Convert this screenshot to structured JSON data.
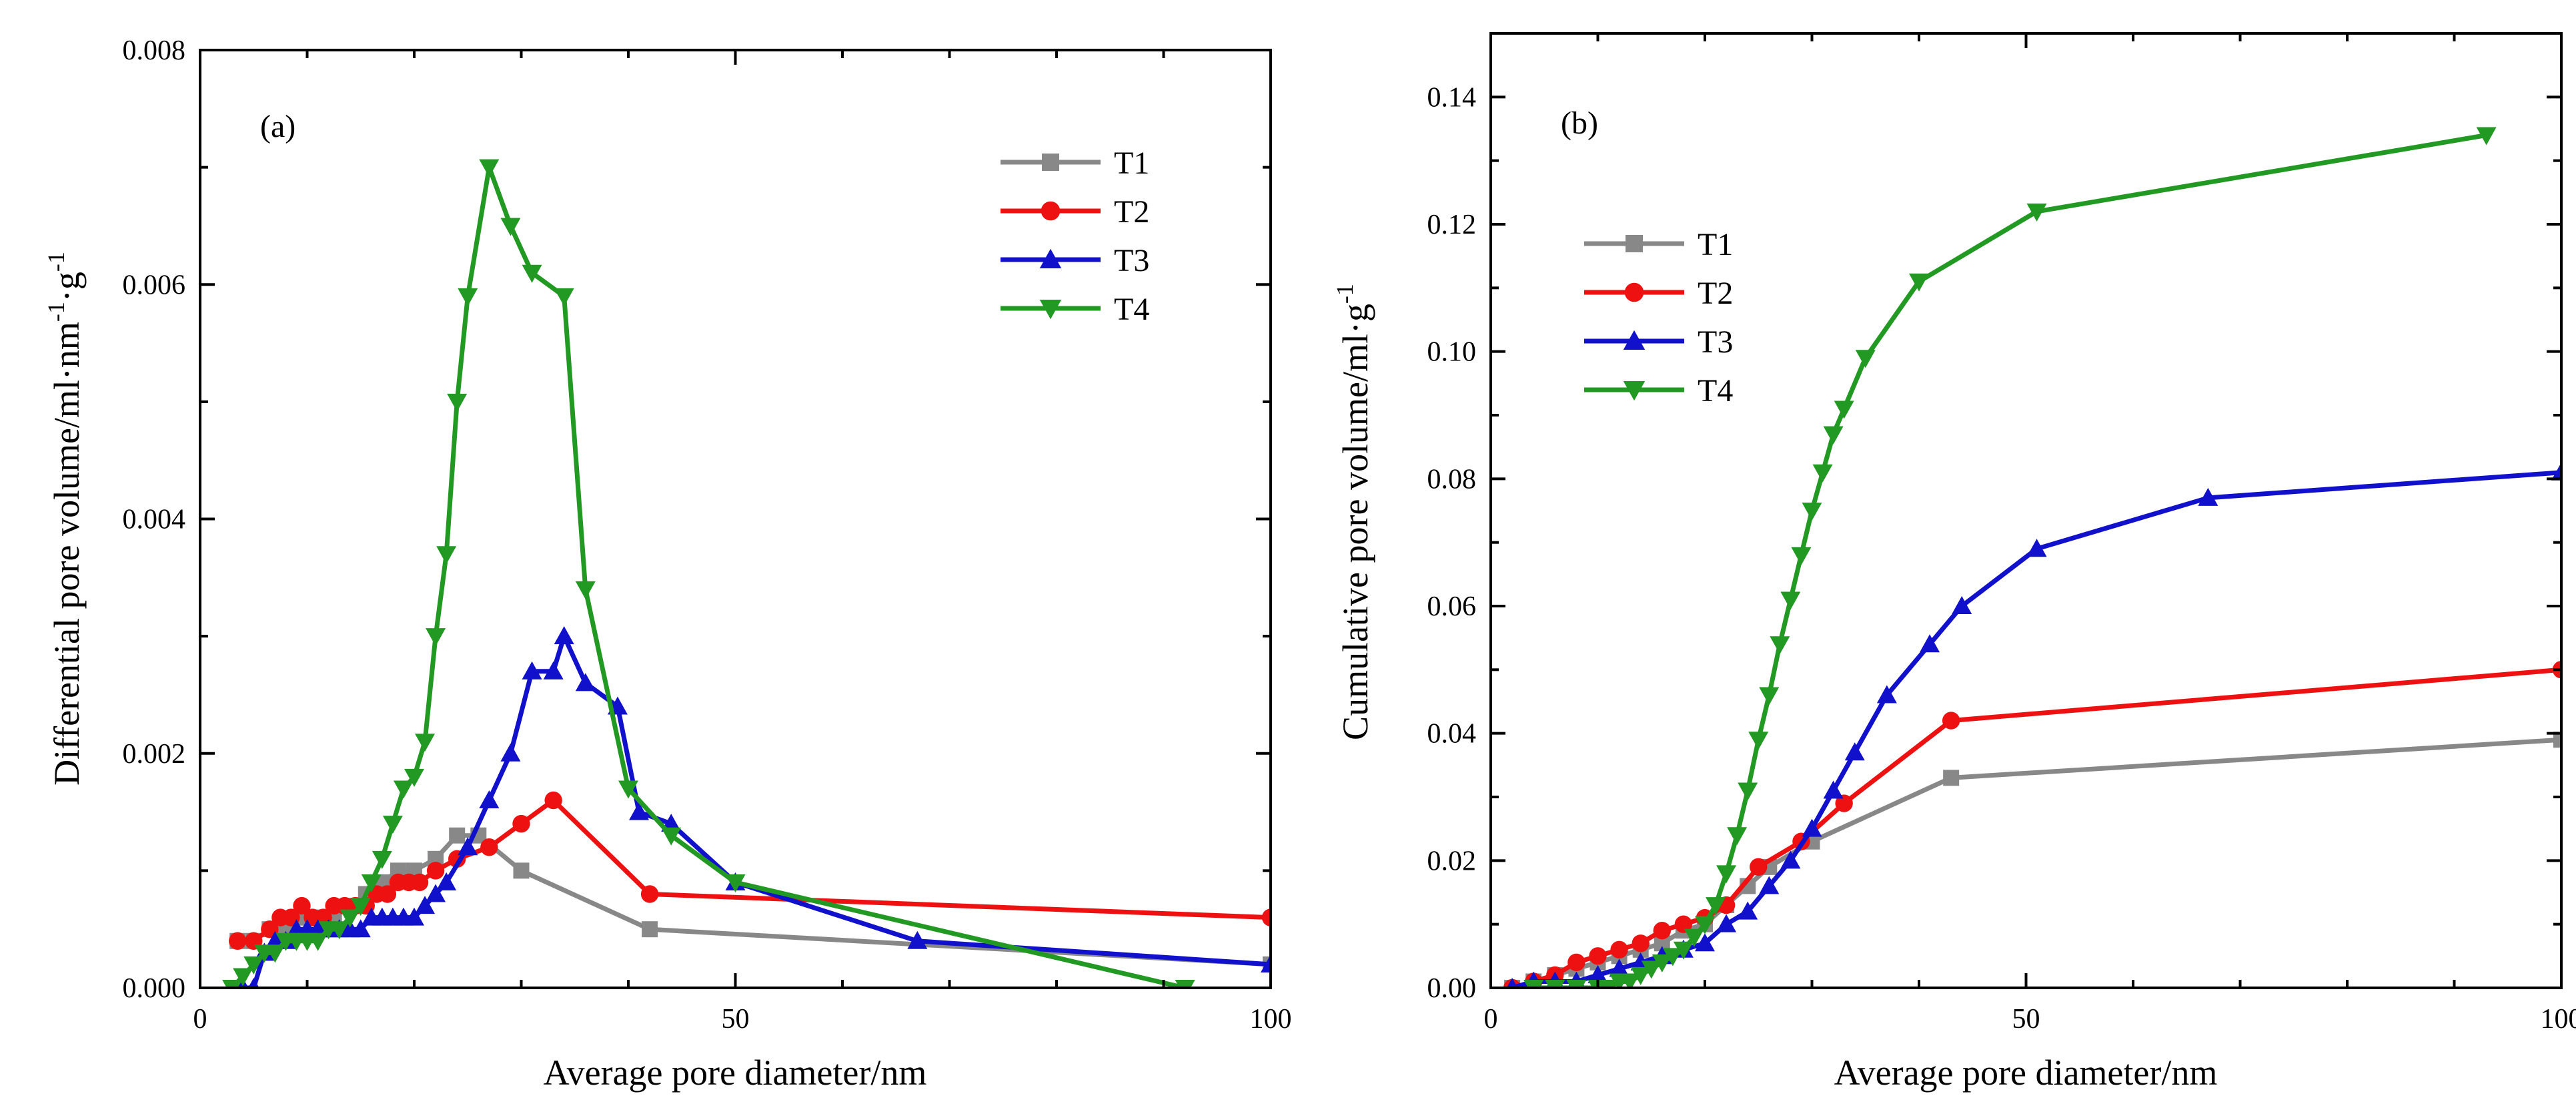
{
  "figure": {
    "description_free": true
  },
  "colors": {
    "T1": "#888888",
    "T2": "#ee1111",
    "T3": "#1111cc",
    "T4": "#229922"
  },
  "chart_data": [
    {
      "type": "line",
      "panel_label": "(a)",
      "title": "",
      "xlabel": "Average pore diameter/nm",
      "ylabel": "Differential pore volume/ml·nm",
      "ylabel_sup1": "-1",
      "ylabel_mid": "·g",
      "ylabel_sup2": "-1",
      "xlim": [
        0,
        100
      ],
      "ylim": [
        0,
        0.008
      ],
      "xticks": [
        0,
        50,
        100
      ],
      "yticks": [
        0,
        0.002,
        0.004,
        0.006,
        0.008
      ],
      "xtick_labels": [
        "0",
        "50",
        "100"
      ],
      "ytick_labels": [
        "0.000",
        "0.002",
        "0.004",
        "0.006",
        "0.008"
      ],
      "x_minor_step": 10,
      "y_minor_step": 0.001,
      "legend": [
        "T1",
        "T2",
        "T3",
        "T4"
      ],
      "legend_position": "top-right",
      "series": [
        {
          "name": "T1",
          "marker": "square",
          "x": [
            3.5,
            5,
            6.5,
            8,
            9.5,
            11,
            12.5,
            14,
            15.5,
            17,
            18.5,
            20,
            22,
            24,
            26,
            30,
            42,
            100
          ],
          "y": [
            0.0004,
            0.0004,
            0.0005,
            0.0005,
            0.0006,
            0.0006,
            0.0006,
            0.0007,
            0.0008,
            0.0009,
            0.001,
            0.001,
            0.0011,
            0.0013,
            0.0013,
            0.001,
            0.0005,
            0.0002
          ]
        },
        {
          "name": "T2",
          "marker": "circle",
          "x": [
            3.5,
            5,
            6.5,
            7.5,
            8.5,
            9.5,
            10.5,
            11.5,
            12.5,
            13.5,
            14.5,
            15.5,
            16.5,
            17.5,
            18.5,
            19.5,
            20.5,
            22,
            24,
            27,
            30,
            33,
            42,
            100
          ],
          "y": [
            0.0004,
            0.0004,
            0.0005,
            0.0006,
            0.0006,
            0.0007,
            0.0006,
            0.0006,
            0.0007,
            0.0007,
            0.0007,
            0.0007,
            0.0008,
            0.0008,
            0.0009,
            0.0009,
            0.0009,
            0.001,
            0.0011,
            0.0012,
            0.0014,
            0.0016,
            0.0008,
            0.0006
          ]
        },
        {
          "name": "T3",
          "marker": "triangle-up",
          "x": [
            4,
            5,
            6,
            7,
            8,
            9,
            10,
            11,
            12,
            13,
            14,
            15,
            16,
            17,
            18,
            19,
            20,
            21,
            22,
            23,
            25,
            27,
            29,
            31,
            33,
            34,
            36,
            39,
            41,
            44,
            50,
            67,
            100
          ],
          "y": [
            0.0,
            0.0,
            0.0003,
            0.0004,
            0.0004,
            0.0005,
            0.0005,
            0.0005,
            0.0005,
            0.0005,
            0.0005,
            0.0005,
            0.0006,
            0.0006,
            0.0006,
            0.0006,
            0.0006,
            0.0007,
            0.0008,
            0.0009,
            0.0012,
            0.0016,
            0.002,
            0.0027,
            0.0027,
            0.003,
            0.0026,
            0.0024,
            0.0015,
            0.0014,
            0.0009,
            0.0004,
            0.0002
          ]
        },
        {
          "name": "T4",
          "marker": "triangle-down",
          "x": [
            3,
            4,
            5,
            6,
            7,
            8,
            9,
            10,
            11,
            12,
            13,
            14,
            15,
            16,
            17,
            18,
            19,
            20,
            21,
            22,
            23,
            24,
            25,
            27,
            29,
            31,
            34,
            36,
            40,
            44,
            50,
            92
          ],
          "y": [
            0.0,
            0.0001,
            0.0002,
            0.0003,
            0.0003,
            0.0004,
            0.0004,
            0.0004,
            0.0004,
            0.0005,
            0.0005,
            0.0006,
            0.0007,
            0.0009,
            0.0011,
            0.0014,
            0.0017,
            0.0018,
            0.0021,
            0.003,
            0.0037,
            0.005,
            0.0059,
            0.007,
            0.0065,
            0.0061,
            0.0059,
            0.0034,
            0.0017,
            0.0013,
            0.0009,
            0.0
          ]
        }
      ]
    },
    {
      "type": "line",
      "panel_label": "(b)",
      "title": "",
      "xlabel": "Average pore diameter/nm",
      "ylabel": "Cumulative pore volume/ml·g",
      "ylabel_sup1": "-1",
      "xlim": [
        0,
        100
      ],
      "ylim": [
        0,
        0.15
      ],
      "xticks": [
        0,
        50,
        100
      ],
      "yticks": [
        0,
        0.02,
        0.04,
        0.06,
        0.08,
        0.1,
        0.12,
        0.14
      ],
      "xtick_labels": [
        "0",
        "50",
        "100"
      ],
      "ytick_labels": [
        "0.00",
        "0.02",
        "0.04",
        "0.06",
        "0.08",
        "0.10",
        "0.12",
        "0.14"
      ],
      "x_minor_step": 10,
      "y_minor_step": 0.01,
      "legend": [
        "T1",
        "T2",
        "T3",
        "T4"
      ],
      "legend_position": "top-left",
      "series": [
        {
          "name": "T1",
          "marker": "square",
          "x": [
            2,
            4,
            6,
            8,
            10,
            12,
            14,
            16,
            18,
            20,
            22,
            24,
            26,
            30,
            43,
            100
          ],
          "y": [
            0.0,
            0.001,
            0.002,
            0.003,
            0.004,
            0.005,
            0.006,
            0.007,
            0.009,
            0.01,
            0.013,
            0.016,
            0.019,
            0.023,
            0.033,
            0.039
          ]
        },
        {
          "name": "T2",
          "marker": "circle",
          "x": [
            2,
            4,
            6,
            8,
            10,
            12,
            14,
            16,
            18,
            20,
            22,
            25,
            29,
            33,
            43,
            100
          ],
          "y": [
            0.0,
            0.001,
            0.002,
            0.004,
            0.005,
            0.006,
            0.007,
            0.009,
            0.01,
            0.011,
            0.013,
            0.019,
            0.023,
            0.029,
            0.042,
            0.05
          ]
        },
        {
          "name": "T3",
          "marker": "triangle-up",
          "x": [
            2,
            4,
            6,
            8,
            10,
            12,
            14,
            16,
            18,
            20,
            22,
            24,
            26,
            28,
            30,
            32,
            34,
            37,
            41,
            44,
            51,
            67,
            100
          ],
          "y": [
            0.0,
            0.001,
            0.001,
            0.001,
            0.002,
            0.003,
            0.004,
            0.005,
            0.006,
            0.007,
            0.01,
            0.012,
            0.016,
            0.02,
            0.025,
            0.031,
            0.037,
            0.046,
            0.054,
            0.06,
            0.069,
            0.077,
            0.081
          ]
        },
        {
          "name": "T4",
          "marker": "triangle-down",
          "x": [
            4,
            6,
            8,
            10,
            11,
            12,
            13,
            14,
            15,
            16,
            17,
            18,
            19,
            20,
            21,
            22,
            23,
            24,
            25,
            26,
            27,
            28,
            29,
            30,
            31,
            32,
            33,
            35,
            40,
            51,
            93
          ],
          "y": [
            0.0,
            0.0,
            0.0,
            0.0,
            0.0,
            0.001,
            0.001,
            0.002,
            0.003,
            0.004,
            0.005,
            0.006,
            0.008,
            0.01,
            0.013,
            0.018,
            0.024,
            0.031,
            0.039,
            0.046,
            0.054,
            0.061,
            0.068,
            0.075,
            0.081,
            0.087,
            0.091,
            0.099,
            0.111,
            0.122,
            0.134
          ]
        }
      ]
    }
  ]
}
